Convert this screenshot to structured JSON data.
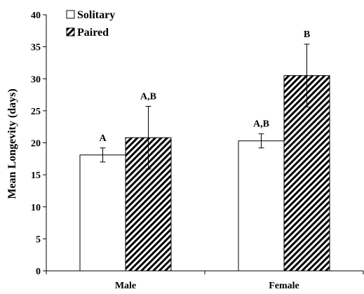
{
  "chart_data": {
    "type": "bar",
    "title": "",
    "xlabel": "",
    "ylabel": "Mean Longevity (days)",
    "categories": [
      "Male",
      "Female"
    ],
    "ylim": [
      0,
      40
    ],
    "yticks": [
      0,
      5,
      10,
      15,
      20,
      25,
      30,
      35,
      40
    ],
    "grid": false,
    "legend_position": "top-left",
    "series": [
      {
        "name": "Solitary",
        "values": [
          18.1,
          20.3
        ],
        "error": [
          1.1,
          1.1
        ],
        "labels": [
          "A",
          "A,B"
        ],
        "fill": "white"
      },
      {
        "name": "Paired",
        "values": [
          20.8,
          30.5
        ],
        "error": [
          4.9,
          4.9
        ],
        "labels": [
          "A,B",
          "B"
        ],
        "fill": "diagonal-hatch"
      }
    ],
    "colors": {
      "bar_stroke": "#000000",
      "solitary_fill": "#ffffff",
      "hatch": "#000000"
    }
  }
}
